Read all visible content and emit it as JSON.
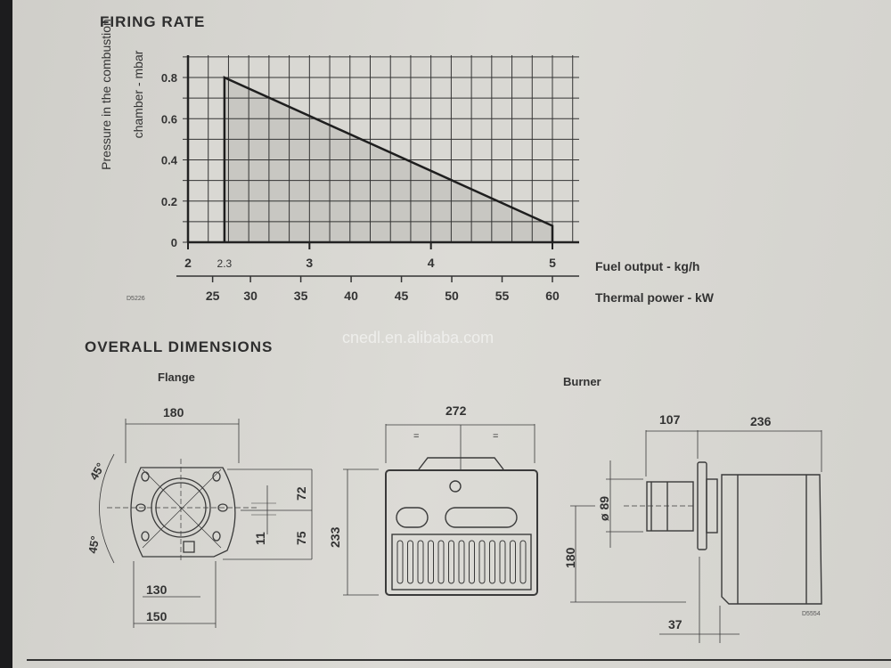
{
  "firing_rate": {
    "heading": "FIRING RATE",
    "drawing_code": "D5226"
  },
  "chart_data": {
    "type": "area",
    "title": "FIRING RATE",
    "ylabel": "Pressure in the combustion chamber - mbar",
    "xlabel": "Fuel output - kg/h",
    "x2label": "Thermal power - kW",
    "xlim": [
      2,
      5.2
    ],
    "ylim": [
      0,
      0.9
    ],
    "grid": true,
    "y_ticks": [
      "0",
      "0.2",
      "0.4",
      "0.6",
      "0.8"
    ],
    "y_tick_values": [
      0,
      0.2,
      0.4,
      0.6,
      0.8
    ],
    "x_ticks": [
      "2",
      "2.3",
      "3",
      "4",
      "5"
    ],
    "x_tick_values": [
      2,
      2.3,
      3,
      4,
      5
    ],
    "x2_ticks": [
      "25",
      "30",
      "35",
      "40",
      "45",
      "50",
      "55",
      "60"
    ],
    "x2_tick_values": [
      25,
      30,
      35,
      40,
      45,
      50,
      55,
      60
    ],
    "x2_to_x": [
      [
        25,
        2.1
      ],
      [
        60,
        5.0
      ]
    ],
    "series": [
      {
        "x": [
          2.3,
          2.3,
          5,
          5
        ],
        "y": [
          0,
          0.8,
          0.08,
          0
        ]
      }
    ]
  },
  "dimensions": {
    "heading": "OVERALL DIMENSIONS",
    "flange_label": "Flange",
    "burner_label": "Burner",
    "watermark": "cnedl.en.alibaba.com",
    "flange": {
      "width_top": "180",
      "angle_top": "45°",
      "angle_bottom": "45°",
      "upper": "72",
      "lower": "75",
      "offset": "11",
      "bolt_width": "130",
      "base_width": "150"
    },
    "front": {
      "width": "272",
      "height": "233",
      "eq_left": "=",
      "eq_right": "="
    },
    "burner": {
      "tube_length": "107",
      "body_length": "236",
      "tube_diameter": "ø 89",
      "axis_height": "180",
      "flange_thickness": "37",
      "drawing_code": "D5554"
    }
  }
}
